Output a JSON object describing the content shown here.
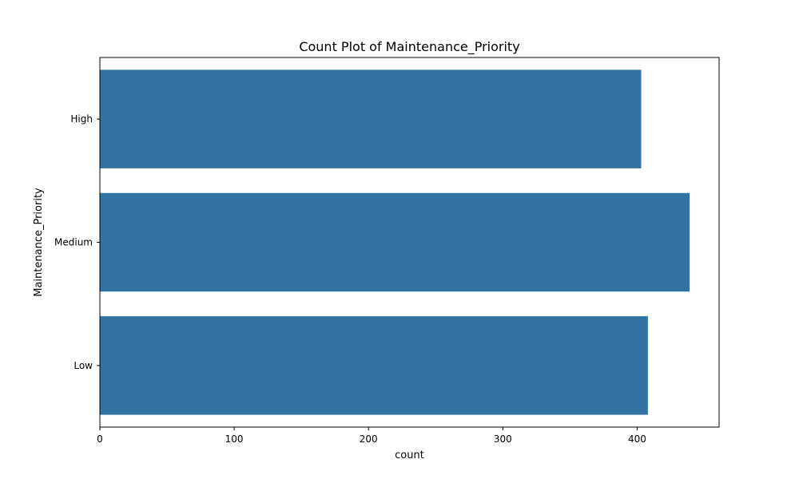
{
  "chart_data": {
    "type": "bar",
    "orientation": "horizontal",
    "title": "Count Plot of Maintenance_Priority",
    "xlabel": "count",
    "ylabel": "Maintenance_Priority",
    "categories": [
      "High",
      "Medium",
      "Low"
    ],
    "values": [
      403,
      439,
      408
    ],
    "xlim": [
      0,
      461
    ],
    "xticks": [
      0,
      100,
      200,
      300,
      400
    ],
    "grid": false,
    "legend": "none",
    "bar_color": "#3274a1"
  }
}
